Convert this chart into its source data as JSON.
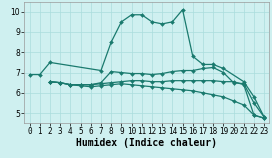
{
  "bg_color": "#cff0f0",
  "line_color": "#1a7a6e",
  "grid_color": "#aadddd",
  "xlabel": "Humidex (Indice chaleur)",
  "xlim": [
    -0.5,
    23.5
  ],
  "ylim": [
    4.5,
    10.5
  ],
  "yticks": [
    5,
    6,
    7,
    8,
    9,
    10
  ],
  "xticks": [
    0,
    1,
    2,
    3,
    4,
    5,
    6,
    7,
    8,
    9,
    10,
    11,
    12,
    13,
    14,
    15,
    16,
    17,
    18,
    19,
    20,
    21,
    22,
    23
  ],
  "lines": [
    {
      "x": [
        0,
        1,
        2,
        7,
        8,
        9,
        10,
        11,
        12,
        13,
        14,
        15,
        16,
        17,
        18,
        19,
        21,
        22,
        23
      ],
      "y": [
        6.9,
        6.9,
        7.5,
        7.1,
        8.5,
        9.5,
        9.85,
        9.85,
        9.5,
        9.4,
        9.5,
        10.1,
        7.8,
        7.4,
        7.4,
        7.2,
        6.55,
        5.8,
        4.8
      ]
    },
    {
      "x": [
        2,
        3,
        4,
        5,
        6,
        7,
        8,
        9,
        10,
        11,
        12,
        13,
        14,
        15,
        16,
        17,
        18,
        19,
        20,
        21,
        22,
        23
      ],
      "y": [
        6.55,
        6.5,
        6.4,
        6.4,
        6.4,
        6.5,
        7.05,
        7.0,
        6.95,
        6.95,
        6.9,
        6.95,
        7.05,
        7.1,
        7.1,
        7.2,
        7.25,
        7.0,
        6.5,
        6.45,
        5.5,
        4.8
      ]
    },
    {
      "x": [
        2,
        3,
        4,
        5,
        6,
        7,
        8,
        9,
        10,
        11,
        12,
        13,
        14,
        15,
        16,
        17,
        18,
        19,
        20,
        21,
        22,
        23
      ],
      "y": [
        6.55,
        6.5,
        6.4,
        6.4,
        6.4,
        6.45,
        6.5,
        6.55,
        6.6,
        6.6,
        6.55,
        6.55,
        6.6,
        6.6,
        6.6,
        6.6,
        6.6,
        6.55,
        6.55,
        6.4,
        4.9,
        4.75
      ]
    },
    {
      "x": [
        2,
        3,
        4,
        5,
        6,
        7,
        8,
        9,
        10,
        11,
        12,
        13,
        14,
        15,
        16,
        17,
        18,
        19,
        20,
        21,
        22,
        23
      ],
      "y": [
        6.55,
        6.5,
        6.4,
        6.35,
        6.3,
        6.35,
        6.4,
        6.45,
        6.4,
        6.35,
        6.3,
        6.25,
        6.2,
        6.15,
        6.1,
        6.0,
        5.9,
        5.8,
        5.6,
        5.4,
        4.9,
        4.75
      ]
    }
  ],
  "tick_fontsize": 5.5,
  "label_fontsize": 7,
  "lw": 0.9,
  "ms": 2.0
}
